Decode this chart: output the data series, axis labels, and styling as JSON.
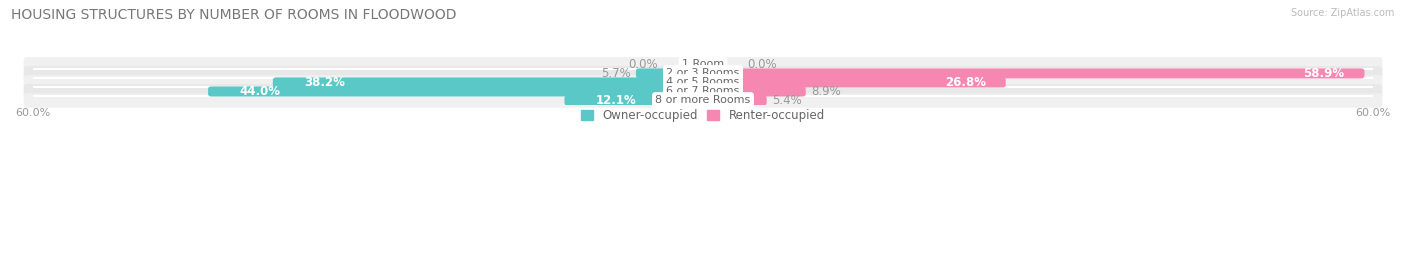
{
  "title": "HOUSING STRUCTURES BY NUMBER OF ROOMS IN FLOODWOOD",
  "source": "Source: ZipAtlas.com",
  "categories": [
    "1 Room",
    "2 or 3 Rooms",
    "4 or 5 Rooms",
    "6 or 7 Rooms",
    "8 or more Rooms"
  ],
  "owner_values": [
    0.0,
    5.7,
    38.2,
    44.0,
    12.1
  ],
  "renter_values": [
    0.0,
    58.9,
    26.8,
    8.9,
    5.4
  ],
  "owner_color": "#5bc8c8",
  "renter_color": "#f587b0",
  "axis_limit": 60.0,
  "bar_height": 0.52,
  "legend_owner": "Owner-occupied",
  "legend_renter": "Renter-occupied",
  "title_fontsize": 10,
  "label_fontsize": 8.5,
  "category_fontsize": 8
}
